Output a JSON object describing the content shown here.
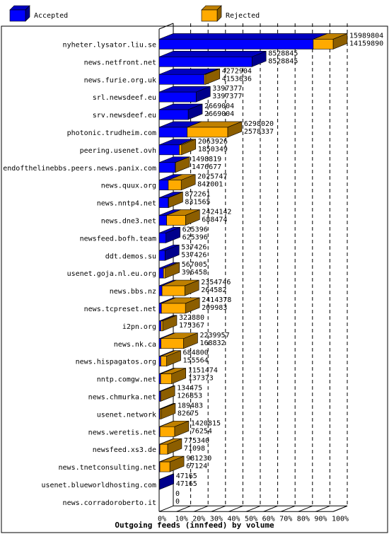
{
  "chart_data": {
    "type": "bar",
    "orientation": "horizontal",
    "title": "Outgoing feeds (innfeed) by volume",
    "legend_placement": "top",
    "x_ticks": [
      "0%",
      "10%",
      "20%",
      "30%",
      "40%",
      "50%",
      "60%",
      "70%",
      "80%",
      "90%",
      "100%"
    ],
    "xlim": [
      0,
      100
    ],
    "max_value": 15989804,
    "series": [
      {
        "name": "Accepted",
        "color": "#0000ff"
      },
      {
        "name": "Rejected",
        "color": "#ffaa00"
      }
    ],
    "categories": [
      "nyheter.lysator.liu.se",
      "news.netfront.net",
      "news.furie.org.uk",
      "srl.newsdeef.eu",
      "srv.newsdeef.eu",
      "photonic.trudheim.com",
      "peering.usenet.ovh",
      "endofthelinebbs.peers.news.panix.com",
      "news.quux.org",
      "news.nntp4.net",
      "news.dne3.net",
      "newsfeed.bofh.team",
      "ddt.demos.su",
      "usenet.goja.nl.eu.org",
      "news.bbs.nz",
      "news.tcpreset.net",
      "i2pn.org",
      "news.nk.ca",
      "news.hispagatos.org",
      "nntp.comgw.net",
      "news.chmurka.net",
      "usenet.network",
      "news.weretis.net",
      "newsfeed.xs3.de",
      "news.tnetconsulting.net",
      "usenet.blueworldhosting.com",
      "news.corradoroberto.it"
    ],
    "offered": [
      15989804,
      8528845,
      4272904,
      3397377,
      2669004,
      6298020,
      2063926,
      1498819,
      2025747,
      872261,
      2424142,
      625396,
      537426,
      567005,
      2354746,
      2414378,
      322880,
      2239957,
      684800,
      1151474,
      134475,
      189483,
      1420815,
      775340,
      981230,
      47165,
      0
    ],
    "accepted": [
      14159890,
      8528845,
      4153636,
      3397377,
      2669004,
      2578337,
      1850349,
      1476677,
      842001,
      831565,
      688474,
      625396,
      537426,
      396458,
      264582,
      209983,
      175367,
      168832,
      155564,
      137373,
      126853,
      82675,
      76254,
      71098,
      67124,
      47165,
      0
    ]
  }
}
